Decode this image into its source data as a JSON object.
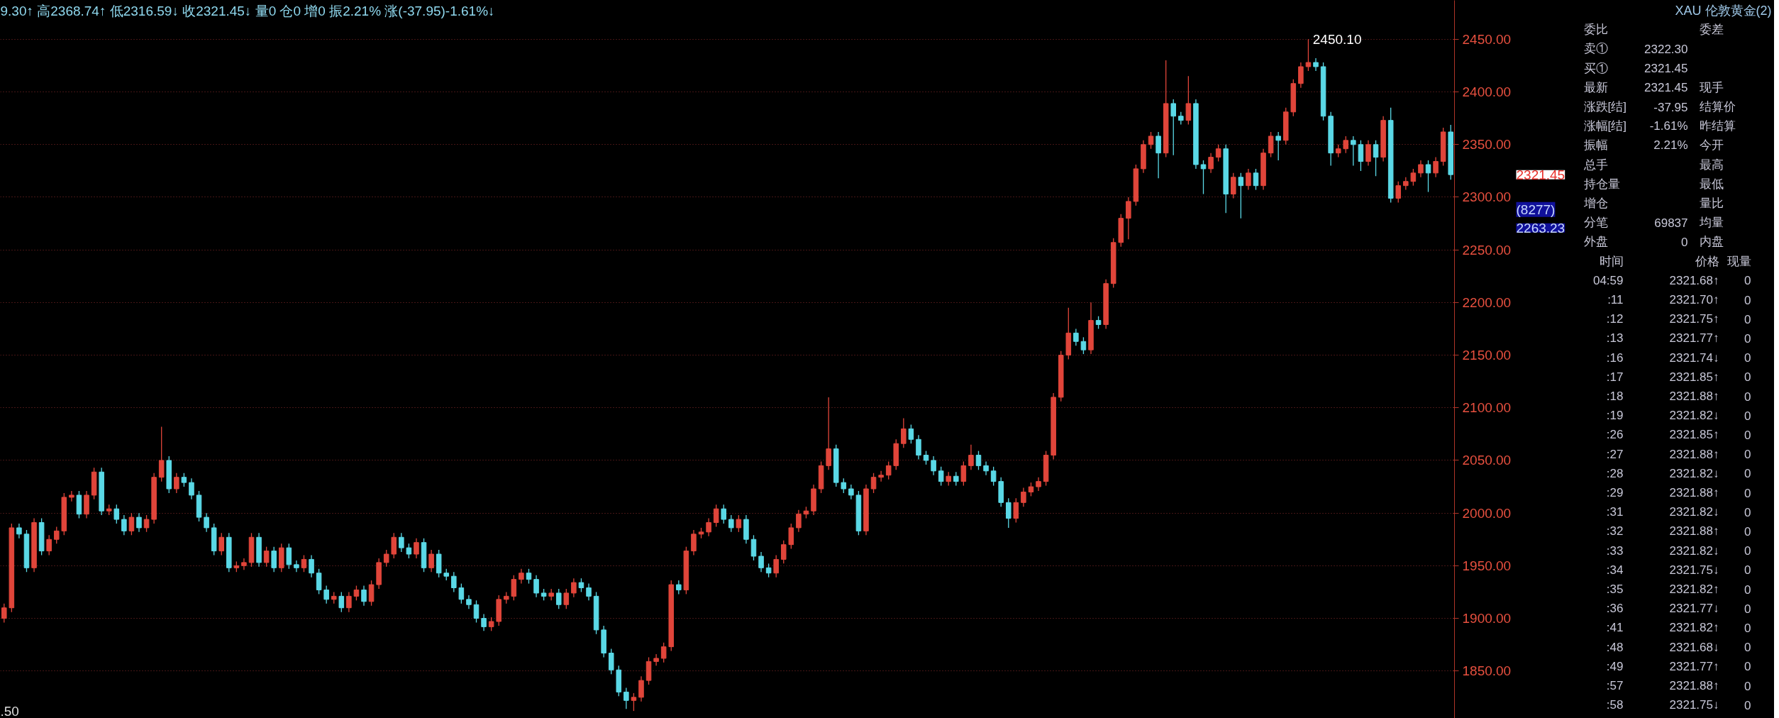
{
  "chart_data": [
    {
      "type": "candlestick",
      "title": "9.30↑ 高2368.74↑ 低2316.59↓ 收2321.45↓ 量0  仓0  增0 振2.21%  涨(-37.95)-1.61%↓",
      "categories": [
        null,
        null,
        null,
        null,
        null,
        null,
        null,
        null,
        null,
        null,
        null,
        null,
        null,
        null,
        null,
        null,
        null,
        null,
        null,
        null,
        null,
        null,
        null,
        null,
        null,
        null,
        null,
        null,
        null,
        null,
        null,
        null,
        null,
        null,
        null,
        null,
        null,
        null,
        null,
        null,
        null,
        null,
        null,
        null,
        null,
        null,
        null,
        null,
        null,
        null,
        null,
        null,
        null,
        null,
        null,
        null,
        null,
        null,
        null,
        null,
        null,
        null,
        null,
        null,
        null,
        null,
        null,
        null,
        null,
        null,
        null,
        null,
        null,
        null,
        null,
        null,
        null,
        null,
        null,
        null,
        null,
        null,
        null,
        null,
        null,
        null,
        null,
        null,
        null,
        null,
        null,
        null,
        null,
        null,
        null,
        null,
        null,
        null,
        null,
        null,
        null,
        null,
        null,
        null,
        null,
        null,
        null,
        null,
        null,
        null,
        null,
        null,
        null,
        null,
        null,
        null,
        null,
        null,
        null,
        null,
        null,
        null,
        null,
        null,
        null,
        null,
        null,
        null,
        null,
        null,
        null,
        null,
        null,
        null,
        null,
        null,
        null,
        null,
        null,
        null,
        null,
        null,
        null,
        null,
        null,
        null,
        null,
        null,
        null,
        null,
        null,
        null,
        null,
        null,
        null,
        null,
        null,
        null,
        null,
        null,
        null,
        null,
        null,
        null,
        null,
        null,
        null,
        null,
        null,
        null,
        null,
        null,
        null,
        null,
        null,
        null,
        null,
        null,
        null,
        null,
        null,
        null,
        null,
        null,
        null,
        null,
        null,
        null,
        null,
        null,
        null,
        null,
        null,
        null
      ],
      "ohlc": [
        [
          1900,
          1914,
          1896,
          1910
        ],
        [
          1910,
          1990,
          1906,
          1986
        ],
        [
          1986,
          1990,
          1976,
          1980
        ],
        [
          1980,
          1984,
          1944,
          1948
        ],
        [
          1948,
          1995,
          1944,
          1991
        ],
        [
          1991,
          1995,
          1960,
          1964
        ],
        [
          1964,
          1979,
          1960,
          1975
        ],
        [
          1975,
          1987,
          1971,
          1983
        ],
        [
          1983,
          2019,
          1979,
          2015
        ],
        [
          2015,
          2021,
          2011,
          2017
        ],
        [
          2017,
          2021,
          1995,
          1999
        ],
        [
          1999,
          2021,
          1995,
          2017
        ],
        [
          2017,
          2043,
          2013,
          2039
        ],
        [
          2039,
          2043,
          1998,
          2002
        ],
        [
          2002,
          2008,
          1998,
          2004
        ],
        [
          2004,
          2008,
          1990,
          1994
        ],
        [
          1994,
          1998,
          1979,
          1983
        ],
        [
          1983,
          2000,
          1979,
          1996
        ],
        [
          1996,
          2000,
          1982,
          1986
        ],
        [
          1986,
          1998,
          1982,
          1994
        ],
        [
          1994,
          2038,
          1990,
          2034
        ],
        [
          2034,
          2082,
          2030,
          2050
        ],
        [
          2050,
          2054,
          2019,
          2023
        ],
        [
          2023,
          2038,
          2019,
          2034
        ],
        [
          2034,
          2038,
          2025,
          2029
        ],
        [
          2029,
          2033,
          2013,
          2017
        ],
        [
          2017,
          2021,
          1992,
          1996
        ],
        [
          1996,
          2000,
          1982,
          1986
        ],
        [
          1986,
          1990,
          1960,
          1964
        ],
        [
          1964,
          1981,
          1960,
          1977
        ],
        [
          1977,
          1981,
          1944,
          1948
        ],
        [
          1948,
          1954,
          1944,
          1950
        ],
        [
          1950,
          1957,
          1946,
          1953
        ],
        [
          1953,
          1981,
          1949,
          1977
        ],
        [
          1977,
          1981,
          1949,
          1953
        ],
        [
          1953,
          1968,
          1949,
          1964
        ],
        [
          1964,
          1968,
          1944,
          1948
        ],
        [
          1948,
          1971,
          1944,
          1967
        ],
        [
          1967,
          1971,
          1947,
          1951
        ],
        [
          1951,
          1955,
          1944,
          1948
        ],
        [
          1948,
          1960,
          1944,
          1956
        ],
        [
          1956,
          1960,
          1939,
          1943
        ],
        [
          1943,
          1947,
          1923,
          1927
        ],
        [
          1927,
          1931,
          1914,
          1918
        ],
        [
          1918,
          1925,
          1914,
          1921
        ],
        [
          1921,
          1925,
          1906,
          1910
        ],
        [
          1910,
          1925,
          1906,
          1921
        ],
        [
          1921,
          1931,
          1917,
          1927
        ],
        [
          1927,
          1931,
          1912,
          1916
        ],
        [
          1916,
          1936,
          1912,
          1932
        ],
        [
          1932,
          1957,
          1928,
          1953
        ],
        [
          1953,
          1965,
          1949,
          1961
        ],
        [
          1961,
          1981,
          1957,
          1977
        ],
        [
          1977,
          1981,
          1963,
          1967
        ],
        [
          1967,
          1971,
          1957,
          1961
        ],
        [
          1961,
          1976,
          1957,
          1972
        ],
        [
          1972,
          1976,
          1944,
          1948
        ],
        [
          1948,
          1965,
          1944,
          1961
        ],
        [
          1961,
          1965,
          1939,
          1943
        ],
        [
          1943,
          1947,
          1936,
          1940
        ],
        [
          1940,
          1944,
          1925,
          1929
        ],
        [
          1929,
          1933,
          1914,
          1918
        ],
        [
          1918,
          1922,
          1909,
          1913
        ],
        [
          1913,
          1917,
          1896,
          1900
        ],
        [
          1900,
          1904,
          1888,
          1892
        ],
        [
          1892,
          1901,
          1888,
          1897
        ],
        [
          1897,
          1922,
          1893,
          1918
        ],
        [
          1918,
          1925,
          1914,
          1921
        ],
        [
          1921,
          1941,
          1917,
          1937
        ],
        [
          1937,
          1947,
          1933,
          1943
        ],
        [
          1943,
          1947,
          1933,
          1937
        ],
        [
          1937,
          1941,
          1920,
          1924
        ],
        [
          1924,
          1928,
          1917,
          1921
        ],
        [
          1921,
          1928,
          1917,
          1924
        ],
        [
          1924,
          1928,
          1909,
          1913
        ],
        [
          1913,
          1928,
          1909,
          1924
        ],
        [
          1924,
          1938,
          1920,
          1934
        ],
        [
          1934,
          1938,
          1925,
          1929
        ],
        [
          1929,
          1933,
          1917,
          1921
        ],
        [
          1921,
          1925,
          1885,
          1889
        ],
        [
          1889,
          1893,
          1863,
          1867
        ],
        [
          1867,
          1871,
          1847,
          1851
        ],
        [
          1851,
          1855,
          1826,
          1830
        ],
        [
          1830,
          1834,
          1814,
          1822
        ],
        [
          1822,
          1829,
          1812,
          1825
        ],
        [
          1825,
          1845,
          1821,
          1841
        ],
        [
          1841,
          1863,
          1837,
          1859
        ],
        [
          1859,
          1866,
          1855,
          1862
        ],
        [
          1862,
          1877,
          1858,
          1873
        ],
        [
          1873,
          1936,
          1869,
          1932
        ],
        [
          1932,
          1936,
          1923,
          1927
        ],
        [
          1927,
          1968,
          1923,
          1964
        ],
        [
          1964,
          1984,
          1960,
          1980
        ],
        [
          1980,
          1986,
          1976,
          1982
        ],
        [
          1982,
          1995,
          1978,
          1991
        ],
        [
          1991,
          2008,
          1987,
          2004
        ],
        [
          2004,
          2008,
          1990,
          1994
        ],
        [
          1994,
          1998,
          1982,
          1986
        ],
        [
          1986,
          1998,
          1982,
          1994
        ],
        [
          1994,
          1998,
          1971,
          1975
        ],
        [
          1975,
          1979,
          1955,
          1959
        ],
        [
          1959,
          1963,
          1944,
          1948
        ],
        [
          1948,
          1952,
          1939,
          1943
        ],
        [
          1943,
          1960,
          1939,
          1956
        ],
        [
          1956,
          1974,
          1952,
          1970
        ],
        [
          1970,
          1990,
          1966,
          1986
        ],
        [
          1986,
          2003,
          1982,
          1999
        ],
        [
          1999,
          2006,
          1995,
          2002
        ],
        [
          2002,
          2027,
          1998,
          2023
        ],
        [
          2023,
          2049,
          2019,
          2045
        ],
        [
          2045,
          2110,
          2041,
          2061
        ],
        [
          2061,
          2065,
          2025,
          2029
        ],
        [
          2029,
          2033,
          2019,
          2023
        ],
        [
          2023,
          2027,
          2013,
          2017
        ],
        [
          2017,
          2021,
          1979,
          1983
        ],
        [
          1983,
          2027,
          1979,
          2023
        ],
        [
          2023,
          2038,
          2019,
          2034
        ],
        [
          2034,
          2040,
          2030,
          2036
        ],
        [
          2036,
          2049,
          2032,
          2045
        ],
        [
          2045,
          2070,
          2041,
          2066
        ],
        [
          2066,
          2090,
          2062,
          2080
        ],
        [
          2080,
          2084,
          2066,
          2070
        ],
        [
          2070,
          2074,
          2051,
          2055
        ],
        [
          2055,
          2059,
          2046,
          2050
        ],
        [
          2050,
          2054,
          2036,
          2040
        ],
        [
          2040,
          2044,
          2026,
          2030
        ],
        [
          2030,
          2039,
          2026,
          2035
        ],
        [
          2035,
          2039,
          2026,
          2030
        ],
        [
          2030,
          2049,
          2026,
          2045
        ],
        [
          2045,
          2065,
          2041,
          2055
        ],
        [
          2055,
          2059,
          2041,
          2045
        ],
        [
          2045,
          2049,
          2036,
          2040
        ],
        [
          2040,
          2044,
          2026,
          2030
        ],
        [
          2030,
          2034,
          2006,
          2010
        ],
        [
          2010,
          2014,
          1986,
          1995
        ],
        [
          1995,
          2014,
          1991,
          2010
        ],
        [
          2010,
          2024,
          2006,
          2020
        ],
        [
          2020,
          2029,
          2016,
          2025
        ],
        [
          2025,
          2034,
          2021,
          2030
        ],
        [
          2030,
          2059,
          2026,
          2055
        ],
        [
          2055,
          2114,
          2051,
          2110
        ],
        [
          2110,
          2154,
          2106,
          2150
        ],
        [
          2150,
          2195,
          2146,
          2171
        ],
        [
          2171,
          2175,
          2159,
          2163
        ],
        [
          2163,
          2167,
          2151,
          2155
        ],
        [
          2155,
          2200,
          2151,
          2183
        ],
        [
          2183,
          2187,
          2175,
          2179
        ],
        [
          2179,
          2222,
          2175,
          2218
        ],
        [
          2218,
          2261,
          2214,
          2257
        ],
        [
          2257,
          2284,
          2253,
          2280
        ],
        [
          2280,
          2300,
          2260,
          2296
        ],
        [
          2296,
          2331,
          2292,
          2327
        ],
        [
          2327,
          2354,
          2323,
          2350
        ],
        [
          2350,
          2362,
          2346,
          2358
        ],
        [
          2358,
          2362,
          2318,
          2342
        ],
        [
          2342,
          2430,
          2338,
          2389
        ],
        [
          2389,
          2393,
          2340,
          2377
        ],
        [
          2377,
          2381,
          2369,
          2373
        ],
        [
          2373,
          2415,
          2369,
          2389
        ],
        [
          2389,
          2393,
          2327,
          2331
        ],
        [
          2331,
          2335,
          2303,
          2327
        ],
        [
          2327,
          2342,
          2323,
          2338
        ],
        [
          2338,
          2350,
          2334,
          2346
        ],
        [
          2346,
          2350,
          2285,
          2303
        ],
        [
          2303,
          2323,
          2299,
          2319
        ],
        [
          2319,
          2323,
          2280,
          2311
        ],
        [
          2311,
          2327,
          2307,
          2323
        ],
        [
          2323,
          2327,
          2307,
          2311
        ],
        [
          2311,
          2346,
          2307,
          2342
        ],
        [
          2342,
          2362,
          2338,
          2358
        ],
        [
          2358,
          2362,
          2335,
          2354
        ],
        [
          2354,
          2385,
          2350,
          2381
        ],
        [
          2381,
          2412,
          2377,
          2408
        ],
        [
          2408,
          2428,
          2404,
          2424
        ],
        [
          2424,
          2450.1,
          2420,
          2428
        ],
        [
          2428,
          2432,
          2420,
          2424
        ],
        [
          2424,
          2428,
          2373,
          2377
        ],
        [
          2377,
          2381,
          2330,
          2342
        ],
        [
          2342,
          2350,
          2338,
          2346
        ],
        [
          2346,
          2358,
          2342,
          2354
        ],
        [
          2354,
          2358,
          2330,
          2350
        ],
        [
          2350,
          2354,
          2325,
          2334
        ],
        [
          2334,
          2354,
          2330,
          2350
        ],
        [
          2350,
          2354,
          2320,
          2338
        ],
        [
          2338,
          2377,
          2334,
          2373
        ],
        [
          2373,
          2385,
          2295,
          2299
        ],
        [
          2299,
          2315,
          2295,
          2311
        ],
        [
          2311,
          2319,
          2307,
          2315
        ],
        [
          2315,
          2327,
          2311,
          2323
        ],
        [
          2323,
          2335,
          2319,
          2331
        ],
        [
          2331,
          2335,
          2305,
          2323
        ],
        [
          2323,
          2338,
          2319,
          2334
        ],
        [
          2334,
          2366,
          2330,
          2362
        ],
        [
          2362,
          2368.74,
          2316.59,
          2321.45
        ]
      ],
      "colors": [
        "#e0453a",
        "#e0453a",
        "#5ad8e6",
        "#5ad8e6",
        "#e0453a",
        "#5ad8e6",
        "#e0453a",
        "#e0453a",
        "#e0453a",
        "#e0453a",
        "#5ad8e6",
        "#e0453a",
        "#e0453a",
        "#5ad8e6",
        "#e0453a",
        "#5ad8e6",
        "#5ad8e6",
        "#e0453a",
        "#5ad8e6",
        "#e0453a",
        "#e0453a",
        "#e0453a",
        "#5ad8e6",
        "#e0453a",
        "#5ad8e6",
        "#5ad8e6",
        "#5ad8e6",
        "#5ad8e6",
        "#5ad8e6",
        "#e0453a",
        "#5ad8e6",
        "#e0453a",
        "#e0453a",
        "#e0453a",
        "#5ad8e6",
        "#e0453a",
        "#5ad8e6",
        "#e0453a",
        "#5ad8e6",
        "#5ad8e6",
        "#e0453a",
        "#5ad8e6",
        "#5ad8e6",
        "#5ad8e6",
        "#e0453a",
        "#5ad8e6",
        "#e0453a",
        "#e0453a",
        "#5ad8e6",
        "#e0453a",
        "#e0453a",
        "#e0453a",
        "#e0453a",
        "#5ad8e6",
        "#5ad8e6",
        "#e0453a",
        "#5ad8e6",
        "#e0453a",
        "#5ad8e6",
        "#5ad8e6",
        "#5ad8e6",
        "#5ad8e6",
        "#5ad8e6",
        "#5ad8e6",
        "#5ad8e6",
        "#e0453a",
        "#e0453a",
        "#e0453a",
        "#e0453a",
        "#e0453a",
        "#5ad8e6",
        "#5ad8e6",
        "#5ad8e6",
        "#e0453a",
        "#5ad8e6",
        "#e0453a",
        "#e0453a",
        "#5ad8e6",
        "#5ad8e6",
        "#5ad8e6",
        "#5ad8e6",
        "#5ad8e6",
        "#5ad8e6",
        "#5ad8e6",
        "#e0453a",
        "#e0453a",
        "#e0453a",
        "#e0453a",
        "#e0453a",
        "#e0453a",
        "#5ad8e6",
        "#e0453a",
        "#e0453a",
        "#e0453a",
        "#e0453a",
        "#e0453a",
        "#5ad8e6",
        "#5ad8e6",
        "#e0453a",
        "#5ad8e6",
        "#5ad8e6",
        "#5ad8e6",
        "#5ad8e6",
        "#e0453a",
        "#e0453a",
        "#e0453a",
        "#e0453a",
        "#e0453a",
        "#e0453a",
        "#e0453a",
        "#e0453a",
        "#5ad8e6",
        "#5ad8e6",
        "#5ad8e6",
        "#5ad8e6",
        "#e0453a",
        "#e0453a",
        "#e0453a",
        "#e0453a",
        "#e0453a",
        "#e0453a",
        "#5ad8e6",
        "#5ad8e6",
        "#5ad8e6",
        "#5ad8e6",
        "#5ad8e6",
        "#e0453a",
        "#5ad8e6",
        "#e0453a",
        "#e0453a",
        "#5ad8e6",
        "#5ad8e6",
        "#5ad8e6",
        "#5ad8e6",
        "#5ad8e6",
        "#e0453a",
        "#e0453a",
        "#e0453a",
        "#e0453a",
        "#e0453a",
        "#e0453a",
        "#e0453a",
        "#e0453a",
        "#5ad8e6",
        "#5ad8e6",
        "#e0453a",
        "#5ad8e6",
        "#e0453a",
        "#e0453a",
        "#e0453a",
        "#e0453a",
        "#e0453a",
        "#e0453a",
        "#e0453a",
        "#5ad8e6",
        "#e0453a",
        "#5ad8e6",
        "#5ad8e6",
        "#e0453a",
        "#5ad8e6",
        "#5ad8e6",
        "#e0453a",
        "#e0453a",
        "#5ad8e6",
        "#e0453a",
        "#5ad8e6",
        "#e0453a",
        "#5ad8e6",
        "#e0453a",
        "#e0453a",
        "#5ad8e6",
        "#e0453a",
        "#e0453a",
        "#e0453a",
        "#e0453a",
        "#5ad8e6",
        "#5ad8e6",
        "#5ad8e6",
        "#e0453a",
        "#e0453a",
        "#5ad8e6",
        "#5ad8e6",
        "#e0453a",
        "#5ad8e6",
        "#e0453a",
        "#5ad8e6",
        "#e0453a",
        "#e0453a",
        "#e0453a",
        "#e0453a",
        "#5ad8e6",
        "#e0453a",
        "#e0453a",
        "#5ad8e6"
      ],
      "ylim": [
        1805,
        2487
      ],
      "yticks": [
        {
          "value": 1850,
          "label": "1850.00"
        },
        {
          "value": 1900,
          "label": "1900.00"
        },
        {
          "value": 1950,
          "label": "1950.00"
        },
        {
          "value": 2000,
          "label": "2000.00"
        },
        {
          "value": 2050,
          "label": "2050.00"
        },
        {
          "value": 2100,
          "label": "2100.00"
        },
        {
          "value": 2150,
          "label": "2150.00"
        },
        {
          "value": 2200,
          "label": "2200.00"
        },
        {
          "value": 2250,
          "label": "2250.00"
        },
        {
          "value": 2300,
          "label": "2300.00"
        },
        {
          "value": 2350,
          "label": "2350.00"
        },
        {
          "value": 2400,
          "label": "2400.00"
        },
        {
          "value": 2450,
          "label": "2450.00"
        }
      ],
      "grid": "y",
      "tick_labels": "y",
      "annotations": [
        "2450.10",
        "2321.45",
        "2263.23",
        "(8277)",
        ".50"
      ]
    },
    {
      "type": "other",
      "title": "XAU 伦敦黄金(2)",
      "color": "#c8c8d8",
      "annotations": [
        "委比\t\t委差",
        "卖①\t2322.30\t",
        "买①\t2321.45\t",
        "最新\t2321.45\t现手",
        "涨跌[结]\t-37.95\t结算价",
        "涨幅[结]\t-1.61%\t昨结算",
        "振幅\t2.21%\t今开",
        "总手\t\t最高",
        "持仓量\t\t最低",
        "增仓\t\t量比",
        "分笔\t69837\t均量",
        "外盘\t0\t内盘",
        "时间\t价格\t现量",
        "04:59\t2321.68↑\t0",
        ":11\t2321.70↑\t0",
        ":12\t2321.75↑\t0",
        ":13\t2321.77↑\t0",
        ":16\t2321.74↓\t0",
        ":17\t2321.85↑\t0",
        ":18\t2321.88↑\t0",
        ":19\t2321.82↓\t0",
        ":26\t2321.85↑\t0",
        ":27\t2321.88↑\t0",
        ":28\t2321.82↓\t0",
        ":29\t2321.88↑\t0",
        ":31\t2321.82↓\t0",
        ":32\t2321.88↑\t0",
        ":33\t2321.82↓\t0",
        ":34\t2321.75↓\t0",
        ":35\t2321.82↑\t0",
        ":36\t2321.77↓\t0",
        ":41\t2321.82↑\t0",
        ":48\t2321.68↓\t0",
        ":49\t2321.77↑\t0",
        ":57\t2321.88↑\t0",
        ":58\t2321.75↓\t0"
      ]
    }
  ]
}
